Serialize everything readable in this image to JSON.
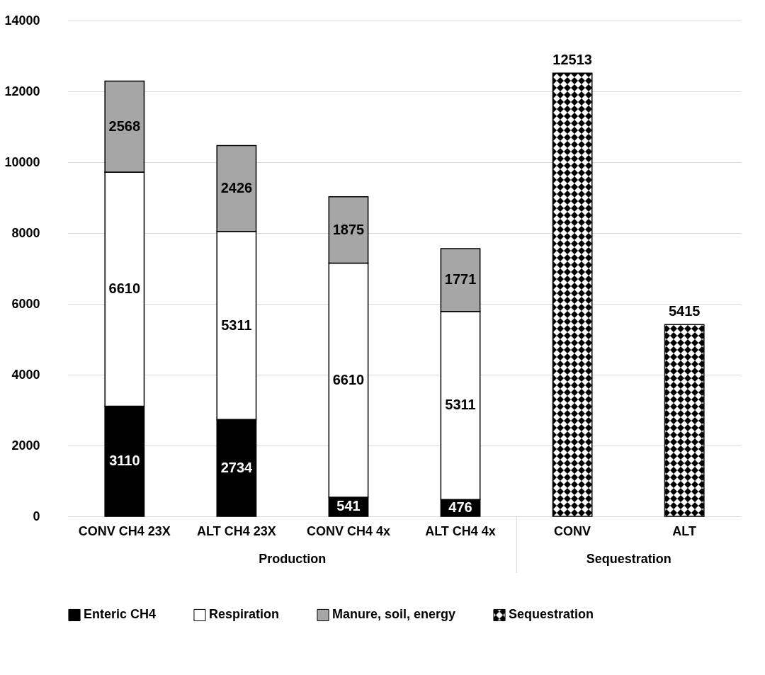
{
  "chart_data": {
    "type": "bar",
    "stacked": true,
    "categories": [
      "CONV CH4 23X",
      "ALT CH4 23X",
      "CONV CH4 4x",
      "ALT CH4 4x",
      "CONV",
      "ALT"
    ],
    "series": [
      {
        "name": "Enteric CH4",
        "color": "#000000",
        "values": [
          3110,
          2734,
          541,
          476,
          null,
          null
        ]
      },
      {
        "name": "Respiration",
        "color": "#ffffff",
        "values": [
          6610,
          5311,
          6610,
          5311,
          null,
          null
        ]
      },
      {
        "name": "Manure, soil, energy",
        "color": "#a6a6a6",
        "values": [
          2568,
          2426,
          1875,
          1771,
          null,
          null
        ]
      },
      {
        "name": "Sequestration",
        "color": "#000000",
        "values": [
          null,
          null,
          null,
          null,
          12513,
          5415
        ]
      }
    ],
    "ylim": [
      0,
      14000
    ],
    "yticks": [
      0,
      2000,
      4000,
      6000,
      8000,
      10000,
      12000,
      14000
    ],
    "grid": "y",
    "legend": "bottom",
    "data_labels": true,
    "annotations": [
      "Production",
      "Sequestration"
    ]
  }
}
